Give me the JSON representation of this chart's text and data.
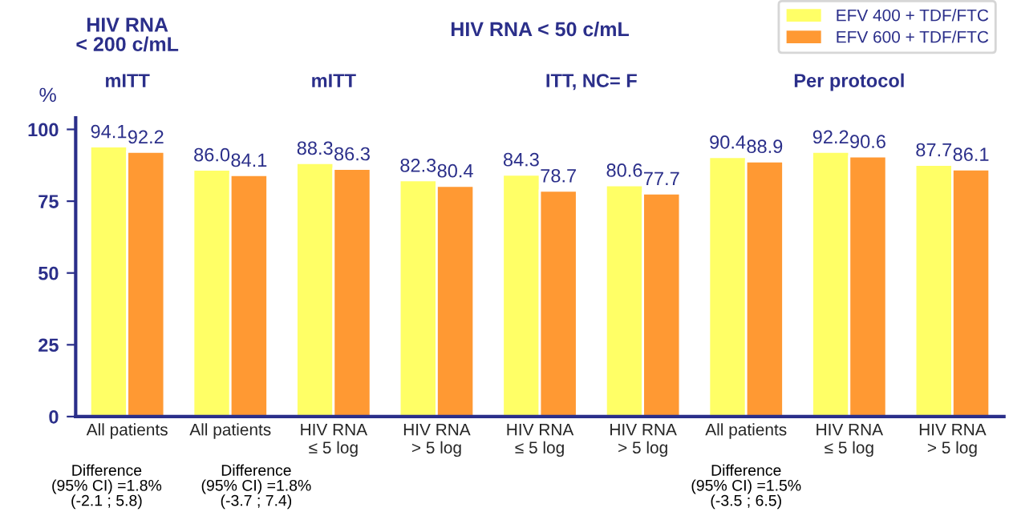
{
  "chart_data": {
    "type": "bar",
    "categories": [
      "All patients",
      "All patients",
      "HIV RNA\n≤ 5 log",
      "HIV RNA\n> 5 log",
      "HIV RNA\n≤ 5 log",
      "HIV RNA\n> 5 log",
      "All patients",
      "HIV RNA\n≤ 5 log",
      "HIV RNA\n> 5 log"
    ],
    "series": [
      {
        "name": "EFV 400 + TDF/FTC",
        "color": "#ffff66",
        "values": [
          94.1,
          86.0,
          88.3,
          82.3,
          84.3,
          80.6,
          90.4,
          92.2,
          87.7
        ],
        "value_labels": [
          "94.1",
          "86.0",
          "88.3",
          "82.3",
          "84.3",
          "80.6",
          "90.4",
          "92.2",
          "87.7"
        ]
      },
      {
        "name": "EFV 600 + TDF/FTC",
        "color": "#ff9933",
        "values": [
          92.2,
          84.1,
          86.3,
          80.4,
          78.7,
          77.7,
          88.9,
          90.6,
          86.1
        ],
        "value_labels": [
          "92.2",
          "84.1",
          "86.3",
          "80.4",
          "78.7",
          "77.7",
          "88.9",
          "90.6",
          "86.1"
        ]
      }
    ],
    "ylabel": "%",
    "ylim": [
      0,
      104
    ],
    "yticks": [
      0,
      25,
      50,
      75,
      100
    ],
    "data_labels": true,
    "legend": "top right",
    "grid": false,
    "annotations": [
      "HIV RNA\n< 200 c/mL",
      "HIV RNA < 50 c/mL",
      "mITT",
      "mITT",
      "ITT, NC= F",
      "Per protocol",
      "Difference\n(95% CI) =1.8%\n(-2.1 ; 5.8)",
      "Difference\n(95% CI) =1.8%\n(-3.7 ; 7.4)",
      "Difference\n(95% CI) =1.5%\n(-3.5 ; 6.5)"
    ]
  }
}
